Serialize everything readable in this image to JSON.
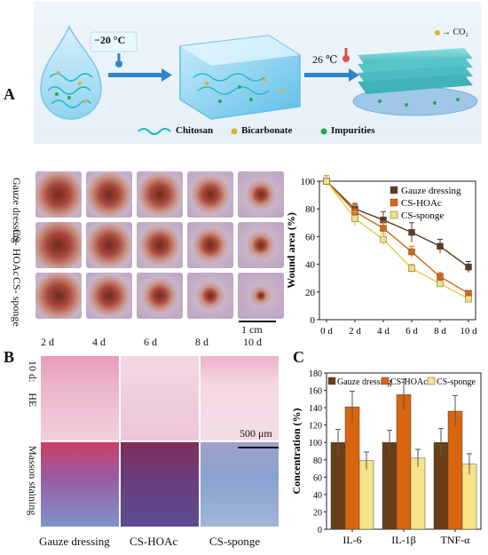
{
  "panel_a": {
    "letter": "A",
    "temp_cold": "−20 °C",
    "temp_warm": "26 ℃",
    "co2_label": "→ CO₂",
    "legend": [
      {
        "label": "Chitosan",
        "icon": "wave-icon",
        "color": "#19b5c7"
      },
      {
        "label": "Bicarbonate",
        "icon": "dot-icon",
        "color": "#e0b030"
      },
      {
        "label": "Impurities",
        "icon": "dot-icon",
        "color": "#2aa84a"
      }
    ]
  },
  "photos": {
    "rows": [
      "Gauze dressing",
      "CS-HOAc",
      "CS-sponge"
    ],
    "row_display": [
      [
        "Gauze",
        "dressing"
      ],
      [
        "CS-",
        "HOAc"
      ],
      [
        "CS-",
        "sponge"
      ]
    ],
    "days": [
      "2 d",
      "4 d",
      "6 d",
      "8 d",
      "10 d"
    ],
    "scale_bar": "1 cm"
  },
  "chart_data": [
    {
      "type": "line",
      "ylabel": "Wound area (%)",
      "xlabel": "",
      "categories": [
        "0 d",
        "2 d",
        "4 d",
        "6 d",
        "8 d",
        "10 d"
      ],
      "ylim": [
        0,
        100
      ],
      "yticks": [
        0,
        20,
        40,
        60,
        80,
        100
      ],
      "legend_position": "top-right",
      "series": [
        {
          "name": "Gauze dressing",
          "color": "#5b3a1e",
          "values": [
            100,
            80,
            72,
            63,
            53,
            38
          ],
          "errors": [
            4,
            4,
            6,
            7,
            5,
            4
          ]
        },
        {
          "name": "CS-HOAc",
          "color": "#d9650f",
          "values": [
            100,
            78,
            66,
            49,
            31,
            19
          ],
          "errors": [
            4,
            5,
            5,
            4,
            3,
            2
          ]
        },
        {
          "name": "CS-sponge",
          "color": "#f3e07a",
          "values": [
            100,
            73,
            58,
            37,
            26,
            15
          ],
          "errors": [
            4,
            5,
            4,
            3,
            2,
            2
          ]
        }
      ]
    },
    {
      "type": "bar",
      "ylabel": "Concentration (%)",
      "categories": [
        "IL-6",
        "IL-1β",
        "TNF-α"
      ],
      "ylim": [
        0,
        180
      ],
      "yticks": [
        0,
        20,
        40,
        60,
        80,
        100,
        120,
        140,
        160,
        180
      ],
      "legend_position": "top",
      "series": [
        {
          "name": "Gauze dressing",
          "color": "#6a3e16",
          "values": [
            100,
            100,
            100
          ],
          "errors": [
            15,
            14,
            16
          ]
        },
        {
          "name": "CS-HOAc",
          "color": "#d9650f",
          "values": [
            141,
            155,
            136
          ],
          "errors": [
            18,
            18,
            18
          ]
        },
        {
          "name": "CS-sponge",
          "color": "#f6e38a",
          "values": [
            79,
            82,
            75
          ],
          "errors": [
            10,
            10,
            12
          ]
        }
      ]
    }
  ],
  "panel_b": {
    "letter": "B",
    "row_labels": [
      "10 d:",
      "HE",
      "Masson staining"
    ],
    "scale_bar": "500 μm",
    "columns": [
      "Gauze dressing",
      "CS-HOAc",
      "CS-sponge"
    ]
  },
  "panel_c": {
    "letter": "C"
  }
}
